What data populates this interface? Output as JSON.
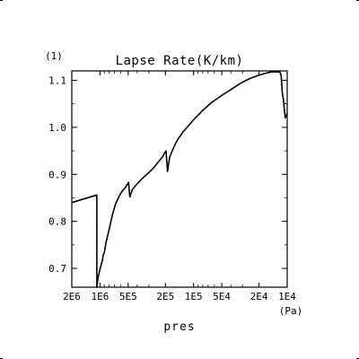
{
  "chart_data": {
    "type": "line",
    "title": "Lapse Rate(K/km)",
    "y_unit": "(1)",
    "xlabel": "pres",
    "x_unit": "(Pa)",
    "x_scale": "log",
    "x_reversed": true,
    "xlim": [
      2000000,
      10000
    ],
    "ylim": [
      0.66,
      1.12
    ],
    "x_ticks": [
      {
        "value": 2000000,
        "label": "2E6"
      },
      {
        "value": 1000000,
        "label": "1E6"
      },
      {
        "value": 500000,
        "label": "5E5"
      },
      {
        "value": 200000,
        "label": "2E5"
      },
      {
        "value": 100000,
        "label": "1E5"
      },
      {
        "value": 50000,
        "label": "5E4"
      },
      {
        "value": 20000,
        "label": "2E4"
      },
      {
        "value": 10000,
        "label": "1E4"
      }
    ],
    "y_ticks": [
      {
        "value": 0.7,
        "label": "0.7"
      },
      {
        "value": 0.8,
        "label": "0.8"
      },
      {
        "value": 0.9,
        "label": "0.9"
      },
      {
        "value": 1.0,
        "label": "1.0"
      },
      {
        "value": 1.1,
        "label": "1.1"
      }
    ],
    "series": [
      {
        "color": "#000000",
        "x": [
          2000000,
          1080000,
          1080000,
          1050000,
          1000000,
          940000,
          920000,
          900000,
          880000,
          860000,
          800000,
          740000,
          680000,
          600000,
          560000,
          530000,
          525000,
          510000,
          495000,
          480000,
          450000,
          400000,
          350000,
          300000,
          270000,
          250000,
          230000,
          215000,
          205000,
          197000,
          190000,
          180000,
          165000,
          150000,
          130000,
          115000,
          100000,
          80000,
          65000,
          50000,
          40000,
          32000,
          25000,
          20000,
          17000,
          14600,
          12700,
          12000,
          11600,
          11300,
          11000,
          10500,
          10000
        ],
        "y": [
          0.84,
          0.856,
          0.66,
          0.68,
          0.698,
          0.718,
          0.73,
          0.733,
          0.745,
          0.756,
          0.782,
          0.812,
          0.838,
          0.86,
          0.868,
          0.873,
          0.876,
          0.878,
          0.883,
          0.852,
          0.868,
          0.88,
          0.892,
          0.904,
          0.913,
          0.921,
          0.93,
          0.937,
          0.945,
          0.95,
          0.906,
          0.937,
          0.955,
          0.972,
          0.99,
          1.002,
          1.016,
          1.036,
          1.052,
          1.068,
          1.08,
          1.093,
          1.104,
          1.111,
          1.115,
          1.118,
          1.118,
          1.118,
          1.11,
          1.075,
          1.06,
          1.02,
          1.03
        ]
      }
    ]
  }
}
